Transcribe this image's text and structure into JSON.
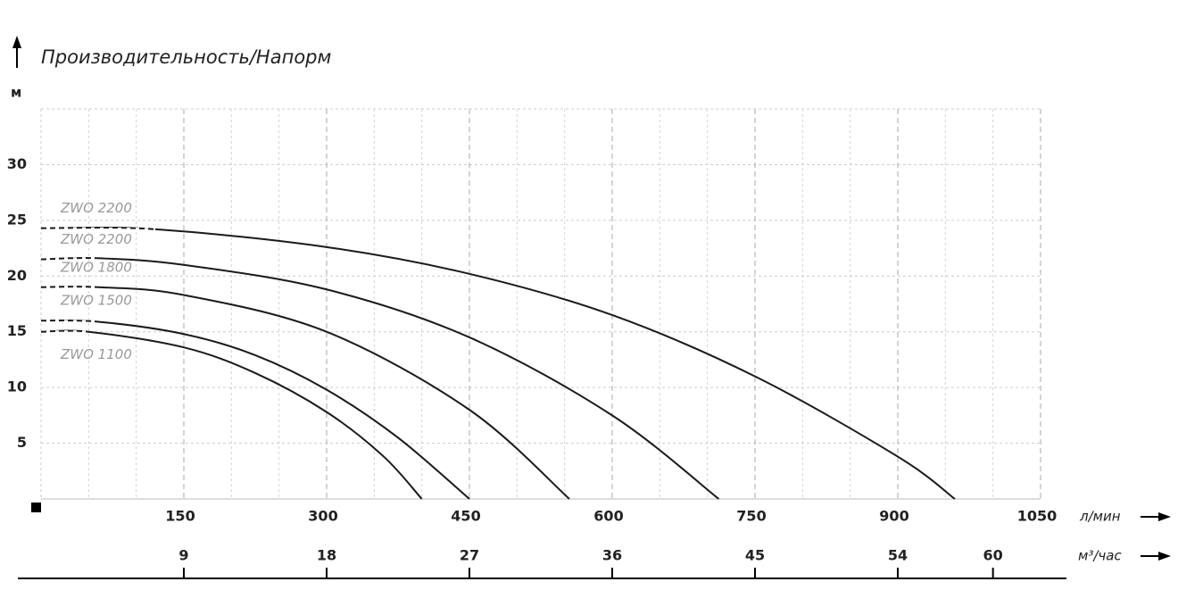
{
  "chart_data": {
    "type": "line",
    "title": "Производительность/Напорм",
    "y_unit": "м",
    "x_unit": "л/мин",
    "x2_unit": "м³/час",
    "xlim": [
      0,
      1050
    ],
    "xticks": [
      150,
      300,
      450,
      600,
      750,
      900,
      1050
    ],
    "xminorticks": [
      50,
      100,
      200,
      250,
      350,
      400,
      500,
      550,
      650,
      700,
      800,
      850,
      950,
      1000
    ],
    "x2lim": [
      0,
      63
    ],
    "x2ticks": [
      9,
      18,
      27,
      36,
      45,
      54,
      60
    ],
    "ylim": [
      0,
      35
    ],
    "yticks": [
      5,
      10,
      15,
      20,
      25,
      30
    ],
    "grid": true,
    "series": [
      {
        "name": "ZWO 2200",
        "color": "#1a1a1a",
        "x": [
          0,
          120,
          300,
          450,
          600,
          750,
          900,
          960
        ],
        "values": [
          24.3,
          24.2,
          22.6,
          20.2,
          16.5,
          11,
          3.8,
          0
        ]
      },
      {
        "name": "ZWO 2200",
        "color": "#1a1a1a",
        "x": [
          0,
          60,
          150,
          300,
          450,
          600,
          712
        ],
        "values": [
          21.5,
          21.6,
          21.0,
          18.8,
          14.5,
          7.5,
          0
        ]
      },
      {
        "name": "ZWO 1800",
        "color": "#1a1a1a",
        "x": [
          0,
          60,
          150,
          300,
          450,
          555
        ],
        "values": [
          19,
          19,
          18.3,
          15,
          8,
          0
        ]
      },
      {
        "name": "ZWO 1500",
        "color": "#1a1a1a",
        "x": [
          0,
          60,
          150,
          225,
          300,
          375,
          450
        ],
        "values": [
          16,
          15.9,
          14.8,
          12.9,
          9.8,
          5.5,
          0
        ]
      },
      {
        "name": "ZWO 1100",
        "color": "#1a1a1a",
        "x": [
          0,
          50,
          150,
          225,
          300,
          360,
          400
        ],
        "values": [
          15,
          15,
          13.6,
          11.3,
          7.8,
          3.8,
          0
        ]
      }
    ]
  }
}
